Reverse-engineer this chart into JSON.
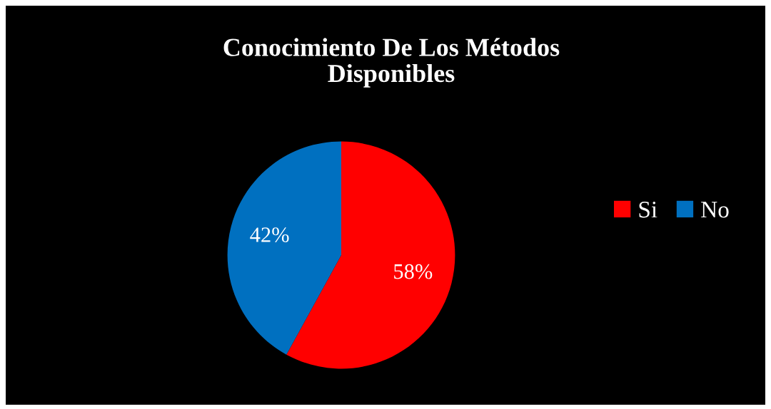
{
  "chart_data": {
    "type": "pie",
    "title": "Conocimiento De Los Métodos\nDisponibles",
    "categories": [
      "Si",
      "No"
    ],
    "values": [
      58,
      42
    ],
    "colors": [
      "#ff0000",
      "#0070c0"
    ],
    "value_labels": [
      "58%",
      "42%"
    ],
    "legend": "right"
  }
}
